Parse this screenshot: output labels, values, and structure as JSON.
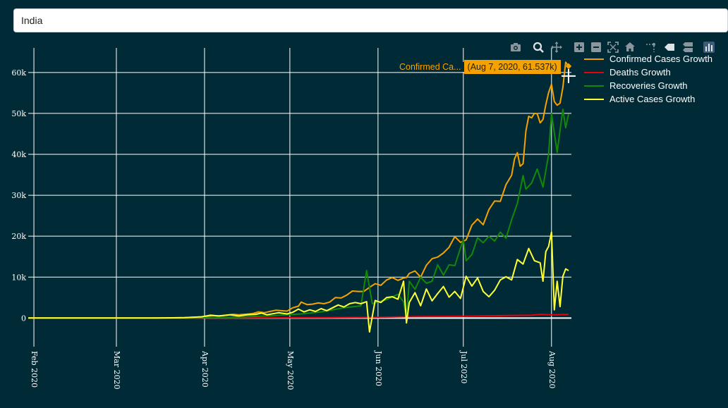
{
  "search": {
    "value": "India"
  },
  "modebar": [
    {
      "name": "camera-icon"
    },
    {
      "name": "zoom-icon"
    },
    {
      "name": "pan-icon"
    },
    {
      "name": "zoom-in-icon"
    },
    {
      "name": "zoom-out-icon"
    },
    {
      "name": "autoscale-icon"
    },
    {
      "name": "reset-axes-icon"
    },
    {
      "name": "spike-lines-icon"
    },
    {
      "name": "hover-closest-icon"
    },
    {
      "name": "hover-compare-icon"
    },
    {
      "name": "plotly-logo-icon"
    }
  ],
  "hover": {
    "name": "Confirmed Ca...",
    "value": "(Aug 7, 2020, 61.537k)"
  },
  "colors": {
    "background": "#002b36",
    "confirmed": "#f5a200",
    "deaths": "#e8000b",
    "recoveries": "#138808",
    "active": "#ffff33",
    "grid": "#ffffff"
  },
  "chart_data": {
    "type": "line",
    "x_range": [
      "2020-01-30",
      "2020-08-08"
    ],
    "ylim": [
      -7000,
      66000
    ],
    "x_ticks": [
      {
        "label": "Feb 2020",
        "date": "2020-02-01"
      },
      {
        "label": "Mar 2020",
        "date": "2020-03-01"
      },
      {
        "label": "Apr 2020",
        "date": "2020-04-01"
      },
      {
        "label": "May 2020",
        "date": "2020-05-01"
      },
      {
        "label": "Jun 2020",
        "date": "2020-06-01"
      },
      {
        "label": "Jul 2020",
        "date": "2020-07-01"
      },
      {
        "label": "Aug 2020",
        "date": "2020-08-01"
      }
    ],
    "y_ticks": [
      {
        "label": "0",
        "value": 0
      },
      {
        "label": "10k",
        "value": 10000
      },
      {
        "label": "20k",
        "value": 20000
      },
      {
        "label": "30k",
        "value": 30000
      },
      {
        "label": "40k",
        "value": 40000
      },
      {
        "label": "50k",
        "value": 50000
      },
      {
        "label": "60k",
        "value": 60000
      }
    ],
    "grid": true,
    "legend_position": "top-right",
    "series": [
      {
        "name": "Confirmed Cases Growth",
        "color": "#f5a200",
        "points": [
          [
            "2020-01-30",
            0
          ],
          [
            "2020-03-01",
            0
          ],
          [
            "2020-03-15",
            30
          ],
          [
            "2020-03-25",
            100
          ],
          [
            "2020-03-28",
            180
          ],
          [
            "2020-03-31",
            300
          ],
          [
            "2020-04-02",
            450
          ],
          [
            "2020-04-04",
            600
          ],
          [
            "2020-04-06",
            500
          ],
          [
            "2020-04-08",
            650
          ],
          [
            "2020-04-11",
            900
          ],
          [
            "2020-04-13",
            800
          ],
          [
            "2020-04-15",
            900
          ],
          [
            "2020-04-18",
            1100
          ],
          [
            "2020-04-20",
            1500
          ],
          [
            "2020-04-22",
            1300
          ],
          [
            "2020-04-24",
            1600
          ],
          [
            "2020-04-26",
            1900
          ],
          [
            "2020-04-28",
            1800
          ],
          [
            "2020-04-30",
            1700
          ],
          [
            "2020-05-02",
            2500
          ],
          [
            "2020-05-04",
            2900
          ],
          [
            "2020-05-05",
            3900
          ],
          [
            "2020-05-07",
            3300
          ],
          [
            "2020-05-09",
            3400
          ],
          [
            "2020-05-11",
            3700
          ],
          [
            "2020-05-13",
            3500
          ],
          [
            "2020-05-15",
            3900
          ],
          [
            "2020-05-17",
            5000
          ],
          [
            "2020-05-19",
            4900
          ],
          [
            "2020-05-21",
            5600
          ],
          [
            "2020-05-23",
            6600
          ],
          [
            "2020-05-25",
            6500
          ],
          [
            "2020-05-27",
            6500
          ],
          [
            "2020-05-29",
            7500
          ],
          [
            "2020-05-31",
            8400
          ],
          [
            "2020-06-02",
            8000
          ],
          [
            "2020-06-04",
            9300
          ],
          [
            "2020-06-06",
            9900
          ],
          [
            "2020-06-08",
            9200
          ],
          [
            "2020-06-10",
            9800
          ],
          [
            "2020-06-11",
            9900
          ],
          [
            "2020-06-12",
            10900
          ],
          [
            "2020-06-14",
            11500
          ],
          [
            "2020-06-16",
            10000
          ],
          [
            "2020-06-18",
            12900
          ],
          [
            "2020-06-20",
            14500
          ],
          [
            "2020-06-22",
            14900
          ],
          [
            "2020-06-24",
            15900
          ],
          [
            "2020-06-26",
            17300
          ],
          [
            "2020-06-28",
            19900
          ],
          [
            "2020-06-30",
            18500
          ],
          [
            "2020-07-02",
            19100
          ],
          [
            "2020-07-04",
            22700
          ],
          [
            "2020-07-06",
            24200
          ],
          [
            "2020-07-08",
            22800
          ],
          [
            "2020-07-10",
            26500
          ],
          [
            "2020-07-12",
            28600
          ],
          [
            "2020-07-14",
            28500
          ],
          [
            "2020-07-16",
            32600
          ],
          [
            "2020-07-18",
            34900
          ],
          [
            "2020-07-19",
            38900
          ],
          [
            "2020-07-20",
            40400
          ],
          [
            "2020-07-21",
            37100
          ],
          [
            "2020-07-22",
            37700
          ],
          [
            "2020-07-23",
            45700
          ],
          [
            "2020-07-24",
            49300
          ],
          [
            "2020-07-25",
            48900
          ],
          [
            "2020-07-26",
            50000
          ],
          [
            "2020-07-27",
            49900
          ],
          [
            "2020-07-28",
            47700
          ],
          [
            "2020-07-29",
            48500
          ],
          [
            "2020-07-30",
            52100
          ],
          [
            "2020-07-31",
            55100
          ],
          [
            "2020-08-01",
            57100
          ],
          [
            "2020-08-02",
            52900
          ],
          [
            "2020-08-03",
            52000
          ],
          [
            "2020-08-04",
            52500
          ],
          [
            "2020-08-05",
            56300
          ],
          [
            "2020-08-06",
            62500
          ],
          [
            "2020-08-07",
            61537
          ]
        ]
      },
      {
        "name": "Deaths Growth",
        "color": "#e8000b",
        "points": [
          [
            "2020-01-30",
            0
          ],
          [
            "2020-03-20",
            0
          ],
          [
            "2020-04-10",
            30
          ],
          [
            "2020-05-01",
            70
          ],
          [
            "2020-05-15",
            100
          ],
          [
            "2020-06-01",
            200
          ],
          [
            "2020-06-15",
            350
          ],
          [
            "2020-07-01",
            420
          ],
          [
            "2020-07-15",
            600
          ],
          [
            "2020-07-25",
            700
          ],
          [
            "2020-07-28",
            900
          ],
          [
            "2020-08-01",
            800
          ],
          [
            "2020-08-07",
            900
          ]
        ]
      },
      {
        "name": "Recoveries Growth",
        "color": "#138808",
        "points": [
          [
            "2020-01-30",
            0
          ],
          [
            "2020-03-28",
            0
          ],
          [
            "2020-04-05",
            100
          ],
          [
            "2020-04-15",
            300
          ],
          [
            "2020-04-25",
            600
          ],
          [
            "2020-05-05",
            1000
          ],
          [
            "2020-05-12",
            1500
          ],
          [
            "2020-05-20",
            2500
          ],
          [
            "2020-05-26",
            3000
          ],
          [
            "2020-05-28",
            11600
          ],
          [
            "2020-05-30",
            3500
          ],
          [
            "2020-06-04",
            4500
          ],
          [
            "2020-06-08",
            5800
          ],
          [
            "2020-06-10",
            4000
          ],
          [
            "2020-06-11",
            0
          ],
          [
            "2020-06-12",
            9000
          ],
          [
            "2020-06-14",
            7000
          ],
          [
            "2020-06-16",
            10000
          ],
          [
            "2020-06-18",
            8500
          ],
          [
            "2020-06-20",
            9000
          ],
          [
            "2020-06-22",
            13000
          ],
          [
            "2020-06-24",
            10500
          ],
          [
            "2020-06-26",
            13000
          ],
          [
            "2020-06-28",
            12800
          ],
          [
            "2020-07-01",
            19200
          ],
          [
            "2020-07-02",
            14000
          ],
          [
            "2020-07-04",
            15500
          ],
          [
            "2020-07-06",
            19600
          ],
          [
            "2020-07-08",
            18400
          ],
          [
            "2020-07-10",
            20000
          ],
          [
            "2020-07-12",
            18800
          ],
          [
            "2020-07-14",
            21000
          ],
          [
            "2020-07-16",
            19500
          ],
          [
            "2020-07-18",
            24000
          ],
          [
            "2020-07-20",
            28000
          ],
          [
            "2020-07-22",
            34800
          ],
          [
            "2020-07-23",
            31500
          ],
          [
            "2020-07-25",
            33000
          ],
          [
            "2020-07-27",
            36400
          ],
          [
            "2020-07-29",
            32000
          ],
          [
            "2020-07-31",
            40000
          ],
          [
            "2020-08-01",
            50000
          ],
          [
            "2020-08-03",
            40500
          ],
          [
            "2020-08-05",
            51000
          ],
          [
            "2020-08-06",
            46500
          ],
          [
            "2020-08-07",
            49800
          ]
        ]
      },
      {
        "name": "Active Cases Growth",
        "color": "#ffff33",
        "points": [
          [
            "2020-01-30",
            0
          ],
          [
            "2020-03-15",
            30
          ],
          [
            "2020-03-25",
            100
          ],
          [
            "2020-03-31",
            300
          ],
          [
            "2020-04-03",
            700
          ],
          [
            "2020-04-06",
            500
          ],
          [
            "2020-04-10",
            800
          ],
          [
            "2020-04-13",
            500
          ],
          [
            "2020-04-16",
            800
          ],
          [
            "2020-04-19",
            900
          ],
          [
            "2020-04-21",
            1200
          ],
          [
            "2020-04-23",
            800
          ],
          [
            "2020-04-27",
            1300
          ],
          [
            "2020-04-30",
            1000
          ],
          [
            "2020-05-02",
            1400
          ],
          [
            "2020-05-04",
            2200
          ],
          [
            "2020-05-06",
            1500
          ],
          [
            "2020-05-08",
            2000
          ],
          [
            "2020-05-10",
            1600
          ],
          [
            "2020-05-12",
            2300
          ],
          [
            "2020-05-14",
            1800
          ],
          [
            "2020-05-16",
            2500
          ],
          [
            "2020-05-18",
            3200
          ],
          [
            "2020-05-20",
            2700
          ],
          [
            "2020-05-22",
            3500
          ],
          [
            "2020-05-24",
            3800
          ],
          [
            "2020-05-26",
            3500
          ],
          [
            "2020-05-28",
            4000
          ],
          [
            "2020-05-29",
            -3400
          ],
          [
            "2020-05-31",
            4300
          ],
          [
            "2020-06-02",
            3800
          ],
          [
            "2020-06-04",
            5000
          ],
          [
            "2020-06-06",
            5200
          ],
          [
            "2020-06-08",
            4600
          ],
          [
            "2020-06-10",
            9000
          ],
          [
            "2020-06-11",
            -1200
          ],
          [
            "2020-06-12",
            3800
          ],
          [
            "2020-06-14",
            6200
          ],
          [
            "2020-06-16",
            3000
          ],
          [
            "2020-06-18",
            7100
          ],
          [
            "2020-06-20",
            4200
          ],
          [
            "2020-06-22",
            6000
          ],
          [
            "2020-06-24",
            7700
          ],
          [
            "2020-06-26",
            5100
          ],
          [
            "2020-06-28",
            6500
          ],
          [
            "2020-06-30",
            4800
          ],
          [
            "2020-07-02",
            10200
          ],
          [
            "2020-07-04",
            7800
          ],
          [
            "2020-07-06",
            9800
          ],
          [
            "2020-07-08",
            6500
          ],
          [
            "2020-07-10",
            5200
          ],
          [
            "2020-07-12",
            6800
          ],
          [
            "2020-07-14",
            9300
          ],
          [
            "2020-07-16",
            10100
          ],
          [
            "2020-07-18",
            9300
          ],
          [
            "2020-07-20",
            14300
          ],
          [
            "2020-07-22",
            13200
          ],
          [
            "2020-07-24",
            17000
          ],
          [
            "2020-07-26",
            14000
          ],
          [
            "2020-07-28",
            13500
          ],
          [
            "2020-07-29",
            9000
          ],
          [
            "2020-07-30",
            16200
          ],
          [
            "2020-07-31",
            17500
          ],
          [
            "2020-08-01",
            21000
          ],
          [
            "2020-08-02",
            2000
          ],
          [
            "2020-08-03",
            9000
          ],
          [
            "2020-08-04",
            2800
          ],
          [
            "2020-08-05",
            10200
          ],
          [
            "2020-08-06",
            12000
          ],
          [
            "2020-08-07",
            11600
          ]
        ]
      }
    ]
  }
}
